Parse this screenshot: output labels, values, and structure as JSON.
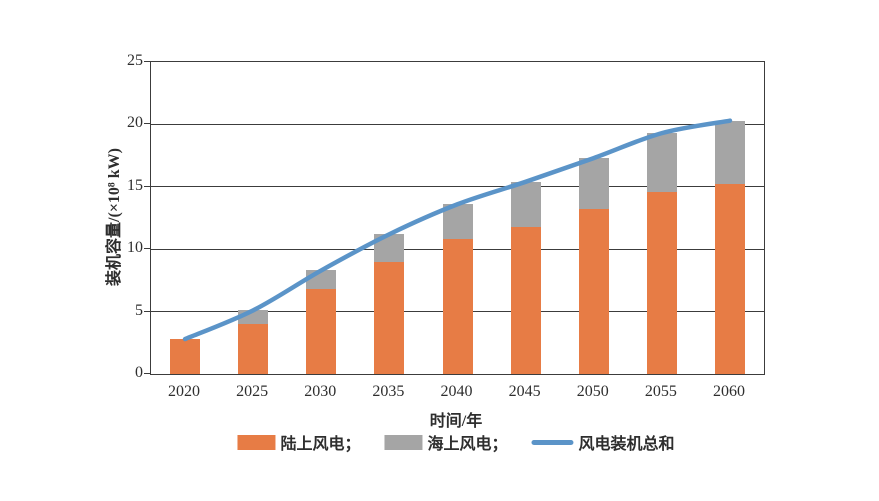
{
  "chart_data": {
    "type": "bar",
    "subtype": "stacked-bar-with-line",
    "title": "",
    "xlabel": "时间/年",
    "ylabel": "装机容量/(×10⁸ kW)",
    "categories": [
      "2020",
      "2025",
      "2030",
      "2035",
      "2040",
      "2045",
      "2050",
      "2055",
      "2060"
    ],
    "series": [
      {
        "name": "陆上风电",
        "type": "bar",
        "color": "#E77C45",
        "values": [
          2.8,
          4.0,
          6.8,
          9.0,
          10.8,
          11.8,
          13.2,
          14.6,
          15.2
        ]
      },
      {
        "name": "海上风电",
        "type": "bar",
        "color": "#A5A5A5",
        "values": [
          0,
          1.1,
          1.5,
          2.2,
          2.8,
          3.6,
          4.1,
          4.7,
          5.1
        ]
      },
      {
        "name": "风电装机总和",
        "type": "line",
        "color": "#5B94C8",
        "values": [
          2.8,
          5.1,
          8.3,
          11.2,
          13.6,
          15.4,
          17.3,
          19.3,
          20.3
        ]
      }
    ],
    "ylim": [
      0,
      25
    ],
    "yticks": [
      0,
      5,
      10,
      15,
      20,
      25
    ],
    "grid": true,
    "legend_position": "bottom"
  },
  "legend": {
    "items": [
      {
        "label": "陆上风电；",
        "swatch": "box",
        "color": "#E77C45"
      },
      {
        "label": "海上风电；",
        "swatch": "box",
        "color": "#A5A5A5"
      },
      {
        "label": "风电装机总和",
        "swatch": "line",
        "color": "#5B94C8"
      }
    ]
  },
  "colors": {
    "onshore_orange": "#E77C45",
    "offshore_gray": "#A5A5A5",
    "total_line_blue": "#5B94C8",
    "axis": "#3c3c3c"
  }
}
